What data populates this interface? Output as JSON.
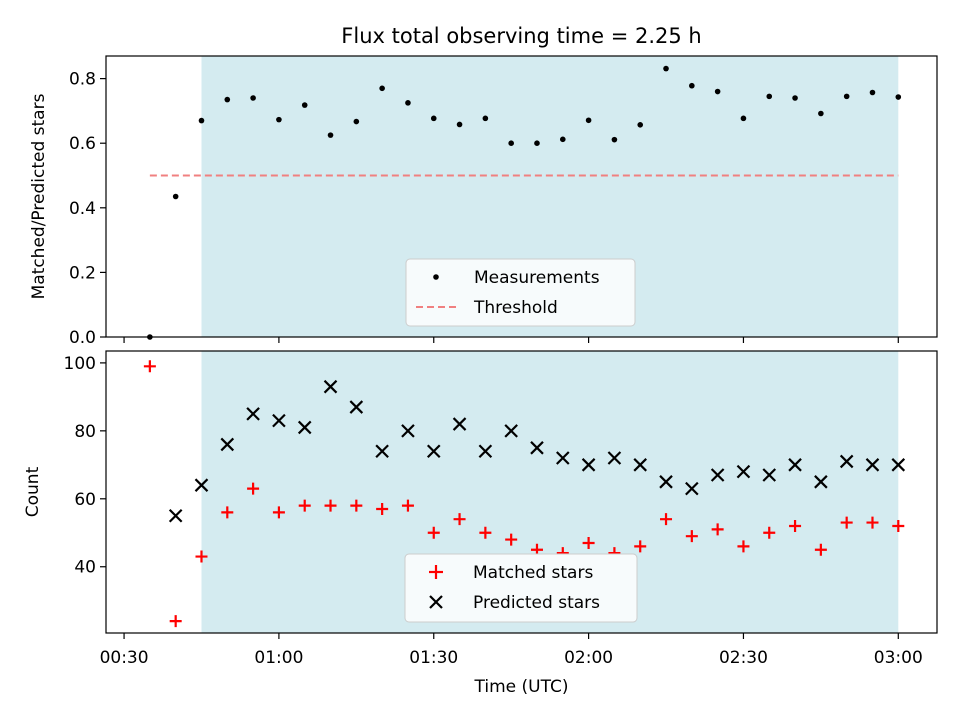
{
  "chart_data": [
    {
      "type": "scatter",
      "title": "Flux total observing time = 2.25 h",
      "xlabel": "",
      "ylabel": "Matched/Predicted stars",
      "xlim": [
        26.5,
        187.5
      ],
      "ylim": [
        0.0,
        0.87
      ],
      "yticks": [
        0.0,
        0.2,
        0.4,
        0.6,
        0.8
      ],
      "ytick_labels": [
        "0.0",
        "0.2",
        "0.4",
        "0.6",
        "0.8"
      ],
      "xticks": [
        30,
        60,
        90,
        120,
        150,
        180
      ],
      "grid": false,
      "legend_position": "lower-center",
      "shaded_region": {
        "x": [
          45,
          180
        ],
        "color": "#d4ebf0"
      },
      "series": [
        {
          "name": "Measurements",
          "type": "scatter",
          "color": "#000000",
          "marker": "dot",
          "x": [
            35,
            40,
            45,
            50,
            55,
            60,
            65,
            70,
            75,
            80,
            85,
            90,
            95,
            100,
            105,
            110,
            115,
            120,
            125,
            130,
            135,
            140,
            145,
            150,
            155,
            160,
            165,
            170,
            175,
            180
          ],
          "values": [
            0.0,
            0.435,
            0.67,
            0.735,
            0.74,
            0.673,
            0.718,
            0.625,
            0.667,
            0.77,
            0.725,
            0.677,
            0.658,
            0.677,
            0.6,
            0.6,
            0.612,
            0.671,
            0.611,
            0.657,
            0.831,
            0.778,
            0.76,
            0.677,
            0.745,
            0.74,
            0.692,
            0.745,
            0.757,
            0.743
          ]
        },
        {
          "name": "Threshold",
          "type": "line",
          "color": "#f08080",
          "style": "dashed",
          "x": [
            35,
            180
          ],
          "values": [
            0.5,
            0.5
          ]
        }
      ]
    },
    {
      "type": "scatter",
      "title": "",
      "xlabel": "Time (UTC)",
      "ylabel": "Count",
      "xlim": [
        26.5,
        187.5
      ],
      "ylim": [
        20.5,
        103.5
      ],
      "yticks": [
        40,
        60,
        80,
        100
      ],
      "ytick_labels": [
        "40",
        "60",
        "80",
        "100"
      ],
      "xticks": [
        30,
        60,
        90,
        120,
        150,
        180
      ],
      "xtick_labels": [
        "00:30",
        "01:00",
        "01:30",
        "02:00",
        "02:30",
        "03:00"
      ],
      "grid": false,
      "legend_position": "lower-center",
      "shaded_region": {
        "x": [
          45,
          180
        ],
        "color": "#d4ebf0"
      },
      "series": [
        {
          "name": "Matched stars",
          "type": "scatter",
          "color": "#ff0000",
          "marker": "plus",
          "x": [
            35,
            40,
            45,
            50,
            55,
            60,
            65,
            70,
            75,
            80,
            85,
            90,
            95,
            100,
            105,
            110,
            115,
            120,
            125,
            130,
            135,
            140,
            145,
            150,
            155,
            160,
            165,
            170,
            175,
            180
          ],
          "values": [
            99,
            24,
            43,
            56,
            63,
            56,
            58,
            58,
            58,
            57,
            58,
            50,
            54,
            50,
            48,
            45,
            44,
            47,
            44,
            46,
            54,
            49,
            51,
            46,
            50,
            52,
            45,
            53,
            53,
            52
          ]
        },
        {
          "name": "Predicted stars",
          "type": "scatter",
          "color": "#000000",
          "marker": "x",
          "x": [
            40,
            45,
            50,
            55,
            60,
            65,
            70,
            75,
            80,
            85,
            90,
            95,
            100,
            105,
            110,
            115,
            120,
            125,
            130,
            135,
            140,
            145,
            150,
            155,
            160,
            165,
            170,
            175,
            180
          ],
          "values": [
            55,
            64,
            76,
            85,
            83,
            81,
            93,
            87,
            74,
            80,
            74,
            82,
            74,
            80,
            75,
            72,
            70,
            72,
            70,
            65,
            63,
            67,
            68,
            67,
            70,
            65,
            71,
            70,
            70
          ]
        }
      ]
    }
  ]
}
